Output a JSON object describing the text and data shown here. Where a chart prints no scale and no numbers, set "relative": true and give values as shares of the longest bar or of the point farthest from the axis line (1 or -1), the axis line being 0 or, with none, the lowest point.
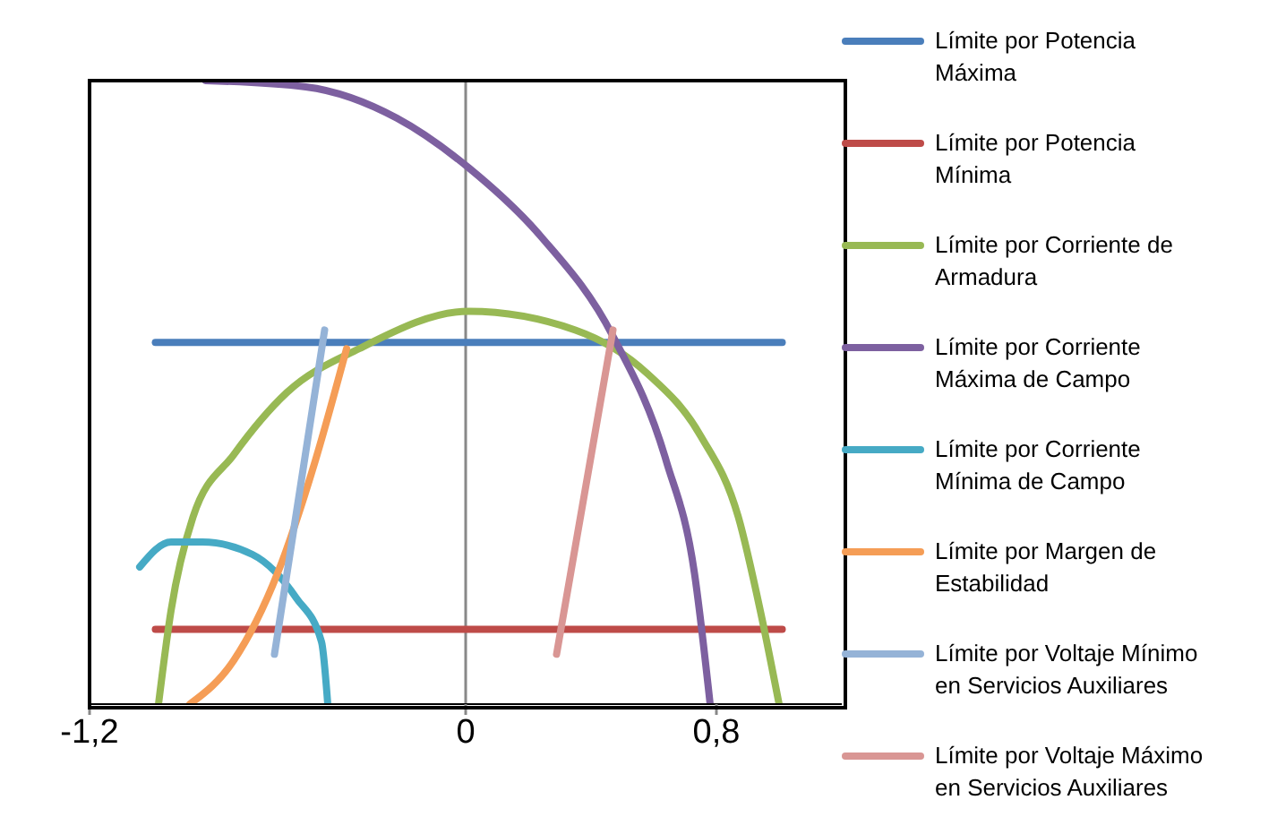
{
  "chart_data": {
    "type": "line",
    "relative": true,
    "xlim": [
      -1.2,
      1.2
    ],
    "xticks": [
      {
        "value": -1.2,
        "label": "-1,2"
      },
      0,
      {
        "value": 0.8,
        "label": "0,8"
      }
    ],
    "legend": "right",
    "marker": "none",
    "ref_lines": [
      {
        "axis": "x",
        "value": 0,
        "color": "#888888"
      }
    ],
    "series": [
      {
        "name": "Límite por Potencia Máxima",
        "color": "#4a7ebb",
        "x": [
          -0.99,
          1.01
        ],
        "values": [
          0.58,
          0.58
        ]
      },
      {
        "name": "Límite por Potencia Mínima",
        "color": "#be4b48",
        "x": [
          -0.99,
          1.01
        ],
        "values": [
          0.12,
          0.12
        ]
      },
      {
        "name": "Límite por Corriente de Armadura",
        "color": "#98b954",
        "x": [
          -0.98,
          -0.94,
          -0.87,
          -0.74,
          -0.57,
          -0.34,
          0.01,
          0.35,
          0.58,
          0.75,
          0.87,
          0.94,
          1.0
        ],
        "values": [
          0,
          0.15,
          0.3,
          0.4,
          0.5,
          0.57,
          0.63,
          0.6,
          0.53,
          0.43,
          0.3,
          0.15,
          0
        ]
      },
      {
        "name": "Límite por Corriente Máxima de Campo",
        "color": "#7d60a0",
        "x": [
          -0.83,
          -0.51,
          -0.22,
          0.01,
          0.24,
          0.47,
          0.64,
          0.73,
          0.78
        ],
        "values": [
          1.0,
          0.99,
          0.94,
          0.86,
          0.75,
          0.59,
          0.39,
          0.21,
          0
        ]
      },
      {
        "name": "Límite por Corriente Mínima de Campo",
        "color": "#46aac5",
        "x": [
          -1.04,
          -0.94,
          -0.84,
          -0.68,
          -0.54,
          -0.46,
          -0.44
        ],
        "values": [
          0.22,
          0.26,
          0.26,
          0.24,
          0.17,
          0.1,
          0
        ]
      },
      {
        "name": "Límite por Margen de Estabilidad",
        "color": "#f59d56",
        "x": [
          -0.88,
          -0.74,
          -0.6,
          -0.48,
          -0.38
        ],
        "values": [
          0,
          0.07,
          0.21,
          0.39,
          0.57
        ]
      },
      {
        "name": "Límite por Voltaje Mínimo en Servicios Auxiliares",
        "color": "#95b3d7",
        "x": [
          -0.61,
          -0.45
        ],
        "values": [
          0.08,
          0.6
        ]
      },
      {
        "name": "Límite por Voltaje Máximo en Servicios Auxiliares",
        "color": "#d99694",
        "x": [
          0.29,
          0.47
        ],
        "values": [
          0.08,
          0.6
        ]
      }
    ]
  }
}
